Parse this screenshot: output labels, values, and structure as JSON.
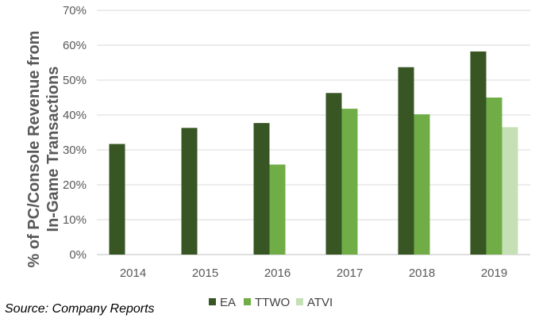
{
  "chart_data": {
    "type": "bar",
    "categories": [
      "2014",
      "2015",
      "2016",
      "2017",
      "2018",
      "2019"
    ],
    "series": [
      {
        "name": "EA",
        "color": "#375623",
        "values": [
          31.7,
          36.3,
          37.7,
          46.3,
          53.7,
          58.2
        ]
      },
      {
        "name": "TTWO",
        "color": "#70ad47",
        "values": [
          null,
          null,
          25.8,
          41.8,
          40.2,
          45.0
        ]
      },
      {
        "name": "ATVI",
        "color": "#c5e0b4",
        "values": [
          null,
          null,
          null,
          null,
          null,
          36.5
        ]
      }
    ],
    "ylim": [
      0,
      70
    ],
    "yticks": [
      "0%",
      "10%",
      "20%",
      "30%",
      "40%",
      "50%",
      "60%",
      "70%"
    ],
    "ylabel_lines": [
      "% of PC/Console Revenue from",
      "In-Game Transactions"
    ],
    "grid": true,
    "legend_position": "bottom-center"
  },
  "source_text": "Source: Company Reports"
}
